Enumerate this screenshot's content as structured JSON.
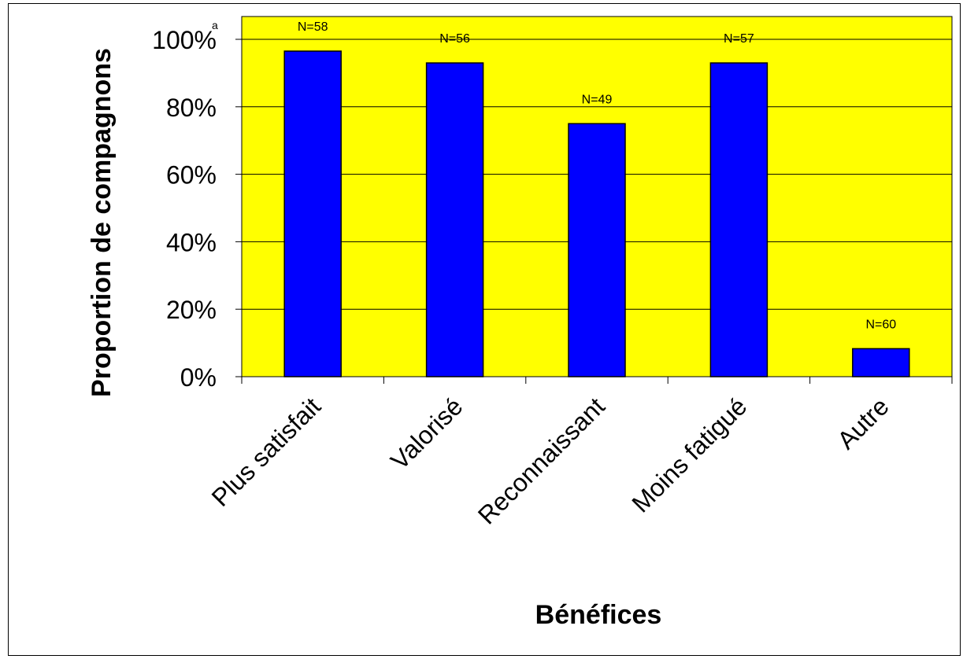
{
  "chart_data": {
    "type": "bar",
    "title": "",
    "xlabel": "Bénéfices",
    "ylabel": "Proportion de compagnons",
    "ylim": [
      0,
      100
    ],
    "yticks": [
      "0%",
      "20%",
      "40%",
      "60%",
      "80%",
      "100%"
    ],
    "ytick_note": "a",
    "categories": [
      "Plus satisfait",
      "Valorisé",
      "Reconnaissant",
      "Moins fatigué",
      "Autre"
    ],
    "values": [
      96.5,
      93,
      75,
      93,
      8.3
    ],
    "n_labels": [
      "N=58",
      "N=56",
      "N=49",
      "N=57",
      "N=60"
    ],
    "grid": true,
    "legend": "none",
    "colors": {
      "bar_fill": "#0000ff",
      "plot_background": "#ffff00",
      "gridline": "#000000"
    }
  }
}
